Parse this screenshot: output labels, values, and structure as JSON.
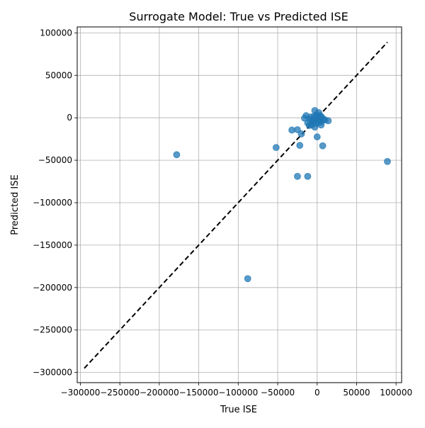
{
  "chart_data": {
    "type": "scatter",
    "title": "Surrogate Model: True vs Predicted ISE",
    "xlabel": "True ISE",
    "ylabel": "Predicted ISE",
    "xlim": [
      -304000,
      107000
    ],
    "ylim": [
      -312000,
      107000
    ],
    "xticks": [
      -300000,
      -250000,
      -200000,
      -150000,
      -100000,
      -50000,
      0,
      50000,
      100000
    ],
    "xtick_labels": [
      "−300000",
      "−250000",
      "−200000",
      "−150000",
      "−100000",
      "−50000",
      "0",
      "50000",
      "100000"
    ],
    "yticks": [
      -300000,
      -250000,
      -200000,
      -150000,
      -100000,
      -50000,
      0,
      50000,
      100000
    ],
    "ytick_labels": [
      "−300000",
      "−250000",
      "−200000",
      "−150000",
      "−100000",
      "−50000",
      "0",
      "50000",
      "100000"
    ],
    "grid": true,
    "point_color": "#1f77b4",
    "point_alpha": 0.75,
    "reference_line": {
      "style": "dashed",
      "color": "#000000",
      "from": [
        -295000,
        -295000
      ],
      "to": [
        89000,
        89000
      ]
    },
    "points": [
      {
        "x": -178000,
        "y": -43500
      },
      {
        "x": -88000,
        "y": -189500
      },
      {
        "x": -52000,
        "y": -35000
      },
      {
        "x": -32000,
        "y": -14500
      },
      {
        "x": -25000,
        "y": -69000
      },
      {
        "x": -25000,
        "y": -14000
      },
      {
        "x": -22000,
        "y": -32500
      },
      {
        "x": -20000,
        "y": -19000
      },
      {
        "x": -16000,
        "y": -500
      },
      {
        "x": -14000,
        "y": 2500
      },
      {
        "x": -12000,
        "y": -69000
      },
      {
        "x": -12000,
        "y": -6000
      },
      {
        "x": -10000,
        "y": -9000
      },
      {
        "x": -9000,
        "y": -2000
      },
      {
        "x": -8000,
        "y": 1000
      },
      {
        "x": -7000,
        "y": -8500
      },
      {
        "x": -6000,
        "y": -3500
      },
      {
        "x": -5000,
        "y": -5500
      },
      {
        "x": -4000,
        "y": 1500
      },
      {
        "x": -3000,
        "y": -11000
      },
      {
        "x": -3000,
        "y": 8500
      },
      {
        "x": -2000,
        "y": -2500
      },
      {
        "x": -1000,
        "y": 3500
      },
      {
        "x": -500,
        "y": -6500
      },
      {
        "x": 0,
        "y": -22500
      },
      {
        "x": 1000,
        "y": 1500
      },
      {
        "x": 2000,
        "y": -4500
      },
      {
        "x": 2000,
        "y": 6000
      },
      {
        "x": 3000,
        "y": -1500
      },
      {
        "x": 4000,
        "y": 2500
      },
      {
        "x": 5000,
        "y": -8500
      },
      {
        "x": 5000,
        "y": -5000
      },
      {
        "x": 6000,
        "y": 500
      },
      {
        "x": 7000,
        "y": -33000
      },
      {
        "x": 8000,
        "y": -2000
      },
      {
        "x": 10000,
        "y": -2500
      },
      {
        "x": 14000,
        "y": -3500
      },
      {
        "x": 89000,
        "y": -51500
      }
    ]
  }
}
